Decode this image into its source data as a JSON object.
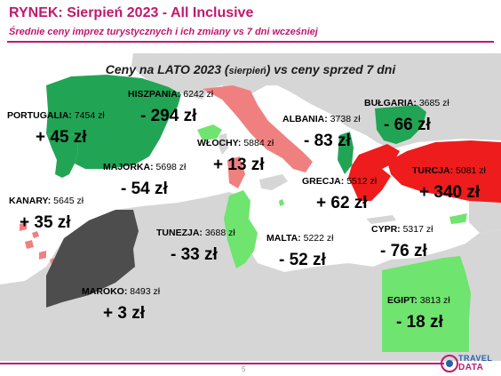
{
  "header": {
    "title": "RYNEK: Sierpień 2023 - All Inclusive",
    "subtitle": "Średnie ceny imprez turystycznych i ich zmiany vs 7 dni wcześniej"
  },
  "map": {
    "heading_main": "Ceny na LATO 2023 (",
    "heading_small": "sierpień",
    "heading_end": ") vs ceny sprzed 7 dni",
    "colors": {
      "sea": "#ffffff",
      "land": "#d6d6d6",
      "dark_green": "#22a455",
      "light_green": "#6fe46f",
      "salmon": "#f08080",
      "red": "#ee1c1c",
      "dark_gray": "#4d4d4d"
    },
    "destinations": [
      {
        "name": "PORTUGALIA:",
        "price": "7454 zł",
        "change": "+ 45 zł",
        "color": "dark_green"
      },
      {
        "name": "HISZPANIA:",
        "price": "6242 zł",
        "change": "- 294 zł",
        "color": "dark_green"
      },
      {
        "name": "WŁOCHY:",
        "price": "5884 zł",
        "change": "+ 13 zł",
        "color": "salmon"
      },
      {
        "name": "ALBANIA:",
        "price": "3738 zł",
        "change": "- 83 zł",
        "color": "dark_green"
      },
      {
        "name": "BUŁGARIA:",
        "price": "3685 zł",
        "change": "- 66 zł",
        "color": "dark_green"
      },
      {
        "name": "MAJORKA:",
        "price": "5698 zł",
        "change": "- 54 zł",
        "color": "light_green"
      },
      {
        "name": "TURCJA:",
        "price": "5081 zł",
        "change": "+ 340 zł",
        "color": "red"
      },
      {
        "name": "GRECJA:",
        "price": "5512 zł",
        "change": "+ 62 zł",
        "color": "red"
      },
      {
        "name": "KANARY:",
        "price": "5645 zł",
        "change": "+ 35 zł",
        "color": "salmon"
      },
      {
        "name": "TUNEZJA:",
        "price": "3688 zł",
        "change": "- 33 zł",
        "color": "light_green"
      },
      {
        "name": "MALTA:",
        "price": "5222 zł",
        "change": "- 52 zł",
        "color": "light_green"
      },
      {
        "name": "CYPR:",
        "price": "5317 zł",
        "change": "- 76 zł",
        "color": "light_green"
      },
      {
        "name": "MAROKO:",
        "price": "8493 zł",
        "change": "+ 3 zł",
        "color": "dark_gray"
      },
      {
        "name": "EGIPT:",
        "price": "3813 zł",
        "change": "- 18 zł",
        "color": "light_green"
      }
    ]
  },
  "footer": {
    "page_number": "5",
    "logo_line1": "TRAVEL",
    "logo_line2": "DATA"
  }
}
